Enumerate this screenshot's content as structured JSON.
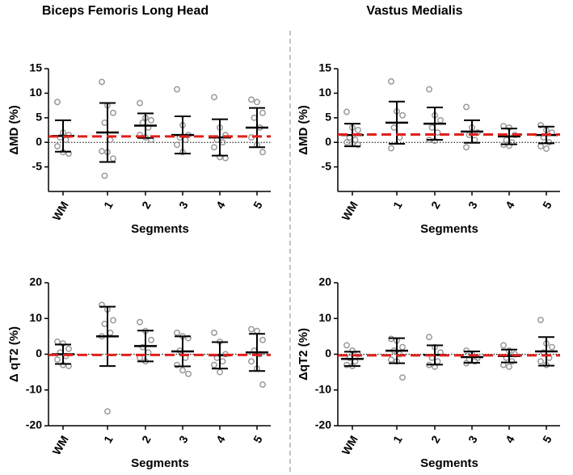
{
  "chart_data": [
    {
      "type": "dotplot",
      "title": "Biceps Femoris Long Head",
      "xlabel": "Segments",
      "ylabel": "ΔMD (%)",
      "categories": [
        "WM",
        "1",
        "2",
        "3",
        "4",
        "5"
      ],
      "means": [
        1.3,
        2,
        3.4,
        1.5,
        1,
        3
      ],
      "sd": [
        3.2,
        6,
        2.5,
        3.8,
        3.7,
        4
      ],
      "points": [
        [
          8.2,
          2.0,
          1.5,
          1,
          0.5,
          -0.8,
          -2,
          -2.3
        ],
        [
          12.3,
          7.5,
          6,
          4,
          0.5,
          -1.8,
          -2,
          -3.3,
          -6.8
        ],
        [
          8,
          5,
          4.5,
          4,
          3,
          1.5,
          1,
          0.5
        ],
        [
          10.8,
          3.5,
          1.5,
          1,
          0.5,
          -0.5,
          -2
        ],
        [
          9.2,
          3,
          1.5,
          0.5,
          0,
          -1,
          -3,
          -3.2
        ],
        [
          8.7,
          8.2,
          6,
          5,
          3,
          1,
          -0.5,
          -2
        ]
      ],
      "ref_line": 1.2,
      "zero_line": 0,
      "ref_color": "#e0201b",
      "point_color": "#999999",
      "ylim": [
        -10,
        15
      ],
      "yticks": [
        -5,
        0,
        5,
        10,
        15
      ]
    },
    {
      "type": "dotplot",
      "title": "Vastus  Medialis",
      "xlabel": "Segments",
      "ylabel": "ΔMD (%)",
      "categories": [
        "WM",
        "1",
        "2",
        "3",
        "4",
        "5"
      ],
      "means": [
        1.5,
        4,
        3.8,
        2.2,
        1.2,
        1.5
      ],
      "sd": [
        2.3,
        4.3,
        3.3,
        2.3,
        1.6,
        1.7
      ],
      "points": [
        [
          6.2,
          3,
          2.5,
          1,
          0.5,
          0,
          -0.3,
          -0.5
        ],
        [
          12.4,
          6.3,
          5.5,
          3,
          1,
          -1.2
        ],
        [
          10.8,
          5.5,
          4.5,
          3,
          2,
          0.5,
          0.3
        ],
        [
          7.2,
          3,
          2,
          1.5,
          0.5,
          -1
        ],
        [
          3.3,
          3,
          1.5,
          0.5,
          0,
          -0.5,
          -0.7
        ],
        [
          3.5,
          2.5,
          2,
          1,
          0,
          -0.8,
          -1.3
        ]
      ],
      "ref_line": 1.6,
      "zero_line": 0,
      "ref_color": "#e0201b",
      "point_color": "#999999",
      "ylim": [
        -10,
        15
      ],
      "yticks": [
        -5,
        0,
        5,
        10,
        15
      ]
    },
    {
      "type": "dotplot",
      "xlabel": "Segments",
      "ylabel": "Δ qT2 (%)",
      "categories": [
        "WM",
        "1",
        "2",
        "3",
        "4",
        "5"
      ],
      "means": [
        0,
        5,
        2.3,
        0.8,
        -0.3,
        0.5
      ],
      "sd": [
        2.7,
        8.3,
        4.3,
        4.2,
        3.7,
        5.2
      ],
      "points": [
        [
          3.5,
          3,
          1.5,
          0.5,
          -0.5,
          -1.5,
          -3,
          -3.3
        ],
        [
          13.8,
          12.5,
          9.5,
          8.5,
          6,
          5,
          -16
        ],
        [
          9,
          6.5,
          4,
          2,
          0.5,
          -1,
          -2
        ],
        [
          6,
          5,
          4.5,
          1,
          -1,
          -3,
          -4.5,
          -5.5
        ],
        [
          6,
          3.5,
          0,
          -1,
          -2,
          -3,
          -5
        ],
        [
          7,
          6.5,
          4,
          1,
          0,
          -2,
          -4,
          -8.5
        ]
      ],
      "ref_line": -0.2,
      "zero_line": 0,
      "ref_color": "#e0201b",
      "point_color": "#999999",
      "ylim": [
        -20,
        20
      ],
      "yticks": [
        -20,
        -10,
        0,
        10,
        20
      ]
    },
    {
      "type": "dotplot",
      "xlabel": "Segments",
      "ylabel": "ΔqT2 (%)",
      "categories": [
        "WM",
        "1",
        "2",
        "3",
        "4",
        "5"
      ],
      "means": [
        -1.3,
        1,
        -0.2,
        -0.8,
        -0.5,
        0.8
      ],
      "sd": [
        2,
        3.5,
        2.7,
        1.6,
        1.8,
        4
      ],
      "points": [
        [
          2.5,
          1,
          0,
          -1,
          -2,
          -3,
          -3.3
        ],
        [
          4.3,
          3.8,
          2,
          1,
          0,
          -1.5,
          -2,
          -6.5
        ],
        [
          4.8,
          2,
          0.5,
          -1,
          -2,
          -3,
          -3.5
        ],
        [
          1,
          0,
          -1,
          -1.5,
          -2,
          -2.5
        ],
        [
          2.5,
          1,
          0,
          -1,
          -2,
          -3,
          -3.5
        ],
        [
          9.6,
          3,
          2,
          0.5,
          -1,
          -2,
          -3
        ]
      ],
      "ref_line": -0.3,
      "zero_line": 0,
      "ref_color": "#e0201b",
      "point_color": "#999999",
      "ylim": [
        -20,
        20
      ],
      "yticks": [
        -20,
        -10,
        0,
        10,
        20
      ]
    }
  ]
}
